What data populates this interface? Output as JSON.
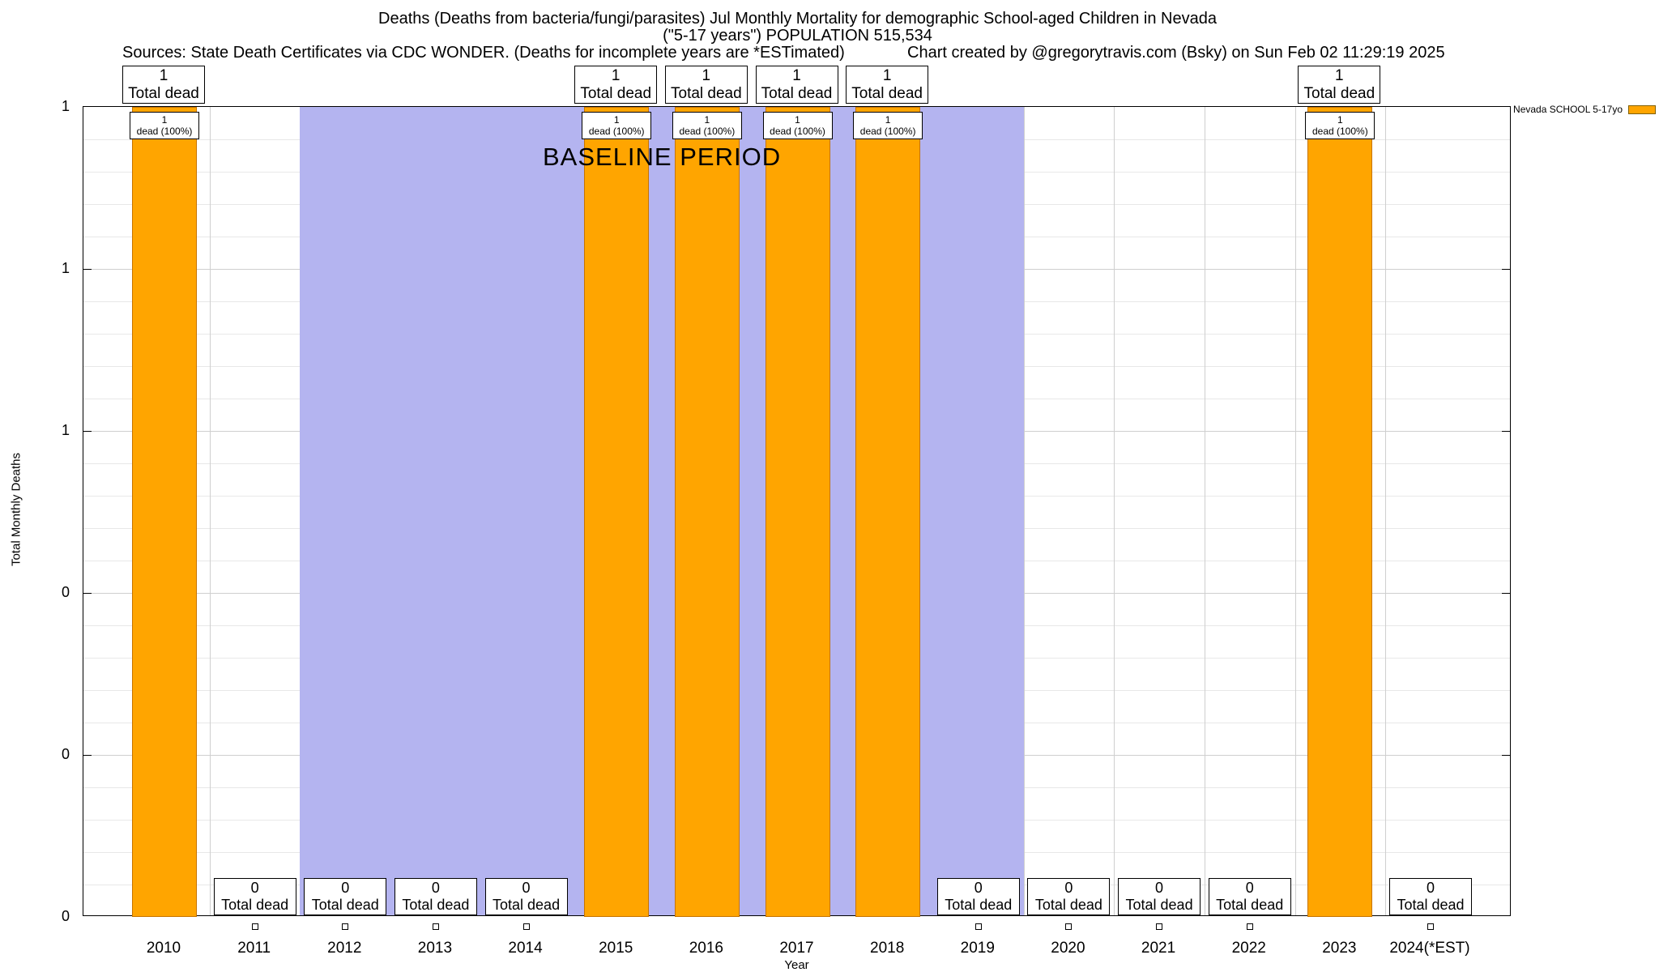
{
  "chart_data": {
    "type": "bar",
    "title": "Deaths (Deaths from bacteria/fungi/parasites) Jul Monthly Mortality for demographic School-aged Children in Nevada",
    "subtitle": "(\"5-17 years\") POPULATION 515,534",
    "sources_note": "Sources: State Death Certificates via CDC WONDER. (Deaths for incomplete years are *ESTimated)",
    "credit_note": "Chart created by @gregorytravis.com (Bsky) on Sun Feb 02 11:29:19 2025",
    "xlabel": "Year",
    "ylabel": "Total Monthly Deaths",
    "ylim": [
      0,
      1
    ],
    "grid": true,
    "legend_position": "top-right",
    "categories": [
      "2010",
      "2011",
      "2012",
      "2013",
      "2014",
      "2015",
      "2016",
      "2017",
      "2018",
      "2019",
      "2020",
      "2021",
      "2022",
      "2023",
      "2024(*EST)"
    ],
    "series": [
      {
        "name": "Nevada SCHOOL 5-17yo",
        "values": [
          1,
          0,
          0,
          0,
          0,
          1,
          1,
          1,
          1,
          0,
          0,
          0,
          0,
          1,
          0
        ]
      }
    ],
    "ytick_labels_top_to_bottom": [
      "1",
      "1",
      "1",
      "0",
      "0",
      "0"
    ],
    "bar_color": "#FFA500",
    "bar_border_color": "#C77400",
    "baseline_band": {
      "label": "BASELINE PERIOD",
      "from_year": 2011.5,
      "to_year": 2019.5,
      "color": "#B4B4F0"
    },
    "labels": {
      "total_dead": "Total dead",
      "dead_pct": "dead (100%)"
    }
  }
}
